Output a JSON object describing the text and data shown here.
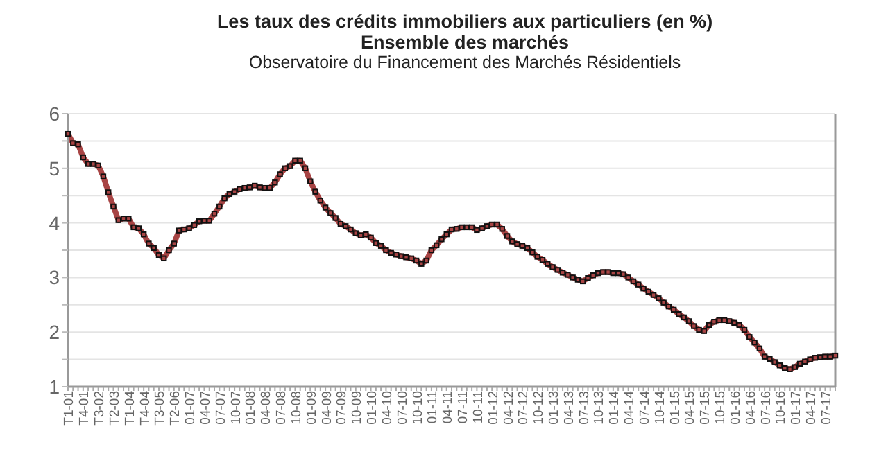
{
  "chart_data": {
    "type": "line",
    "title": "Les taux des crédits immobiliers aux particuliers (en %)\nEnsemble des marchés",
    "annotations": [
      "Observatoire du Financement des Marchés Résidentiels"
    ],
    "categories": [
      "T1-01",
      null,
      null,
      "T4-01",
      null,
      null,
      "T3-02",
      null,
      null,
      "T2-03",
      null,
      null,
      "T1-04",
      null,
      null,
      "T4-04",
      null,
      null,
      "T3-05",
      null,
      null,
      "T2-06",
      null,
      null,
      "01-07",
      null,
      null,
      "04-07",
      null,
      null,
      "07-07",
      null,
      null,
      "10-07",
      null,
      null,
      "01-08",
      null,
      null,
      "04-08",
      null,
      null,
      "07-08",
      null,
      null,
      "10-08",
      null,
      null,
      "01-09",
      null,
      null,
      "04-09",
      null,
      null,
      "07-09",
      null,
      null,
      "10-09",
      null,
      null,
      "01-10",
      null,
      null,
      "04-10",
      null,
      null,
      "07-10",
      null,
      null,
      "10-10",
      null,
      null,
      "01-11",
      null,
      null,
      "04-11",
      null,
      null,
      "07-11",
      null,
      null,
      "10-11",
      null,
      null,
      "01-12",
      null,
      null,
      "04-12",
      null,
      null,
      "07-12",
      null,
      null,
      "10-12",
      null,
      null,
      "01-13",
      null,
      null,
      "04-13",
      null,
      null,
      "07-13",
      null,
      null,
      "10-13",
      null,
      null,
      "01-14",
      null,
      null,
      "04-14",
      null,
      null,
      "07-14",
      null,
      null,
      "10-14",
      null,
      null,
      "01-15",
      null,
      null,
      "04-15",
      null,
      null,
      "07-15",
      null,
      null,
      "10-15",
      null,
      null,
      "01-16",
      null,
      null,
      "04-16",
      null,
      null,
      "07-16",
      null,
      null,
      "10-16",
      null,
      null,
      "01-17",
      null,
      null,
      "04-17",
      null,
      null,
      "07-17",
      null,
      null
    ],
    "series": [
      {
        "color": "#a84444",
        "values": [
          5.63,
          5.46,
          5.44,
          5.2,
          5.08,
          5.08,
          5.05,
          4.85,
          4.56,
          4.3,
          4.05,
          4.08,
          4.08,
          3.92,
          3.9,
          3.79,
          3.62,
          3.54,
          3.41,
          3.35,
          3.5,
          3.62,
          3.86,
          3.88,
          3.9,
          3.96,
          4.03,
          4.04,
          4.04,
          4.17,
          4.3,
          4.45,
          4.53,
          4.57,
          4.62,
          4.64,
          4.65,
          4.68,
          4.65,
          4.64,
          4.64,
          4.74,
          4.89,
          5.0,
          5.04,
          5.14,
          5.14,
          5.0,
          4.76,
          4.57,
          4.41,
          4.28,
          4.18,
          4.09,
          3.98,
          3.94,
          3.88,
          3.81,
          3.77,
          3.79,
          3.73,
          3.63,
          3.58,
          3.5,
          3.45,
          3.42,
          3.39,
          3.37,
          3.35,
          3.31,
          3.25,
          3.31,
          3.5,
          3.59,
          3.7,
          3.79,
          3.88,
          3.89,
          3.92,
          3.92,
          3.92,
          3.87,
          3.9,
          3.94,
          3.97,
          3.97,
          3.89,
          3.76,
          3.66,
          3.61,
          3.58,
          3.54,
          3.46,
          3.38,
          3.32,
          3.25,
          3.19,
          3.14,
          3.09,
          3.05,
          3.0,
          2.96,
          2.93,
          2.99,
          3.04,
          3.08,
          3.1,
          3.1,
          3.08,
          3.08,
          3.06,
          3.0,
          2.93,
          2.87,
          2.8,
          2.74,
          2.68,
          2.62,
          2.54,
          2.47,
          2.41,
          2.33,
          2.27,
          2.2,
          2.11,
          2.04,
          2.02,
          2.13,
          2.19,
          2.22,
          2.22,
          2.2,
          2.17,
          2.13,
          2.04,
          1.91,
          1.81,
          1.7,
          1.55,
          1.51,
          1.45,
          1.39,
          1.34,
          1.32,
          1.36,
          1.42,
          1.46,
          1.5,
          1.53,
          1.54,
          1.55,
          1.55,
          1.57
        ]
      }
    ],
    "ylim": [
      1,
      6
    ],
    "yticks": [
      1,
      {
        "value": 1.5,
        "label": null
      },
      2,
      {
        "value": 2.5,
        "label": null
      },
      3,
      {
        "value": 3.5,
        "label": null
      },
      4,
      {
        "value": 4.5,
        "label": null
      },
      5,
      {
        "value": 5.5,
        "label": null
      },
      6
    ],
    "grid": "y",
    "marker": "square",
    "line_style": "solid"
  }
}
